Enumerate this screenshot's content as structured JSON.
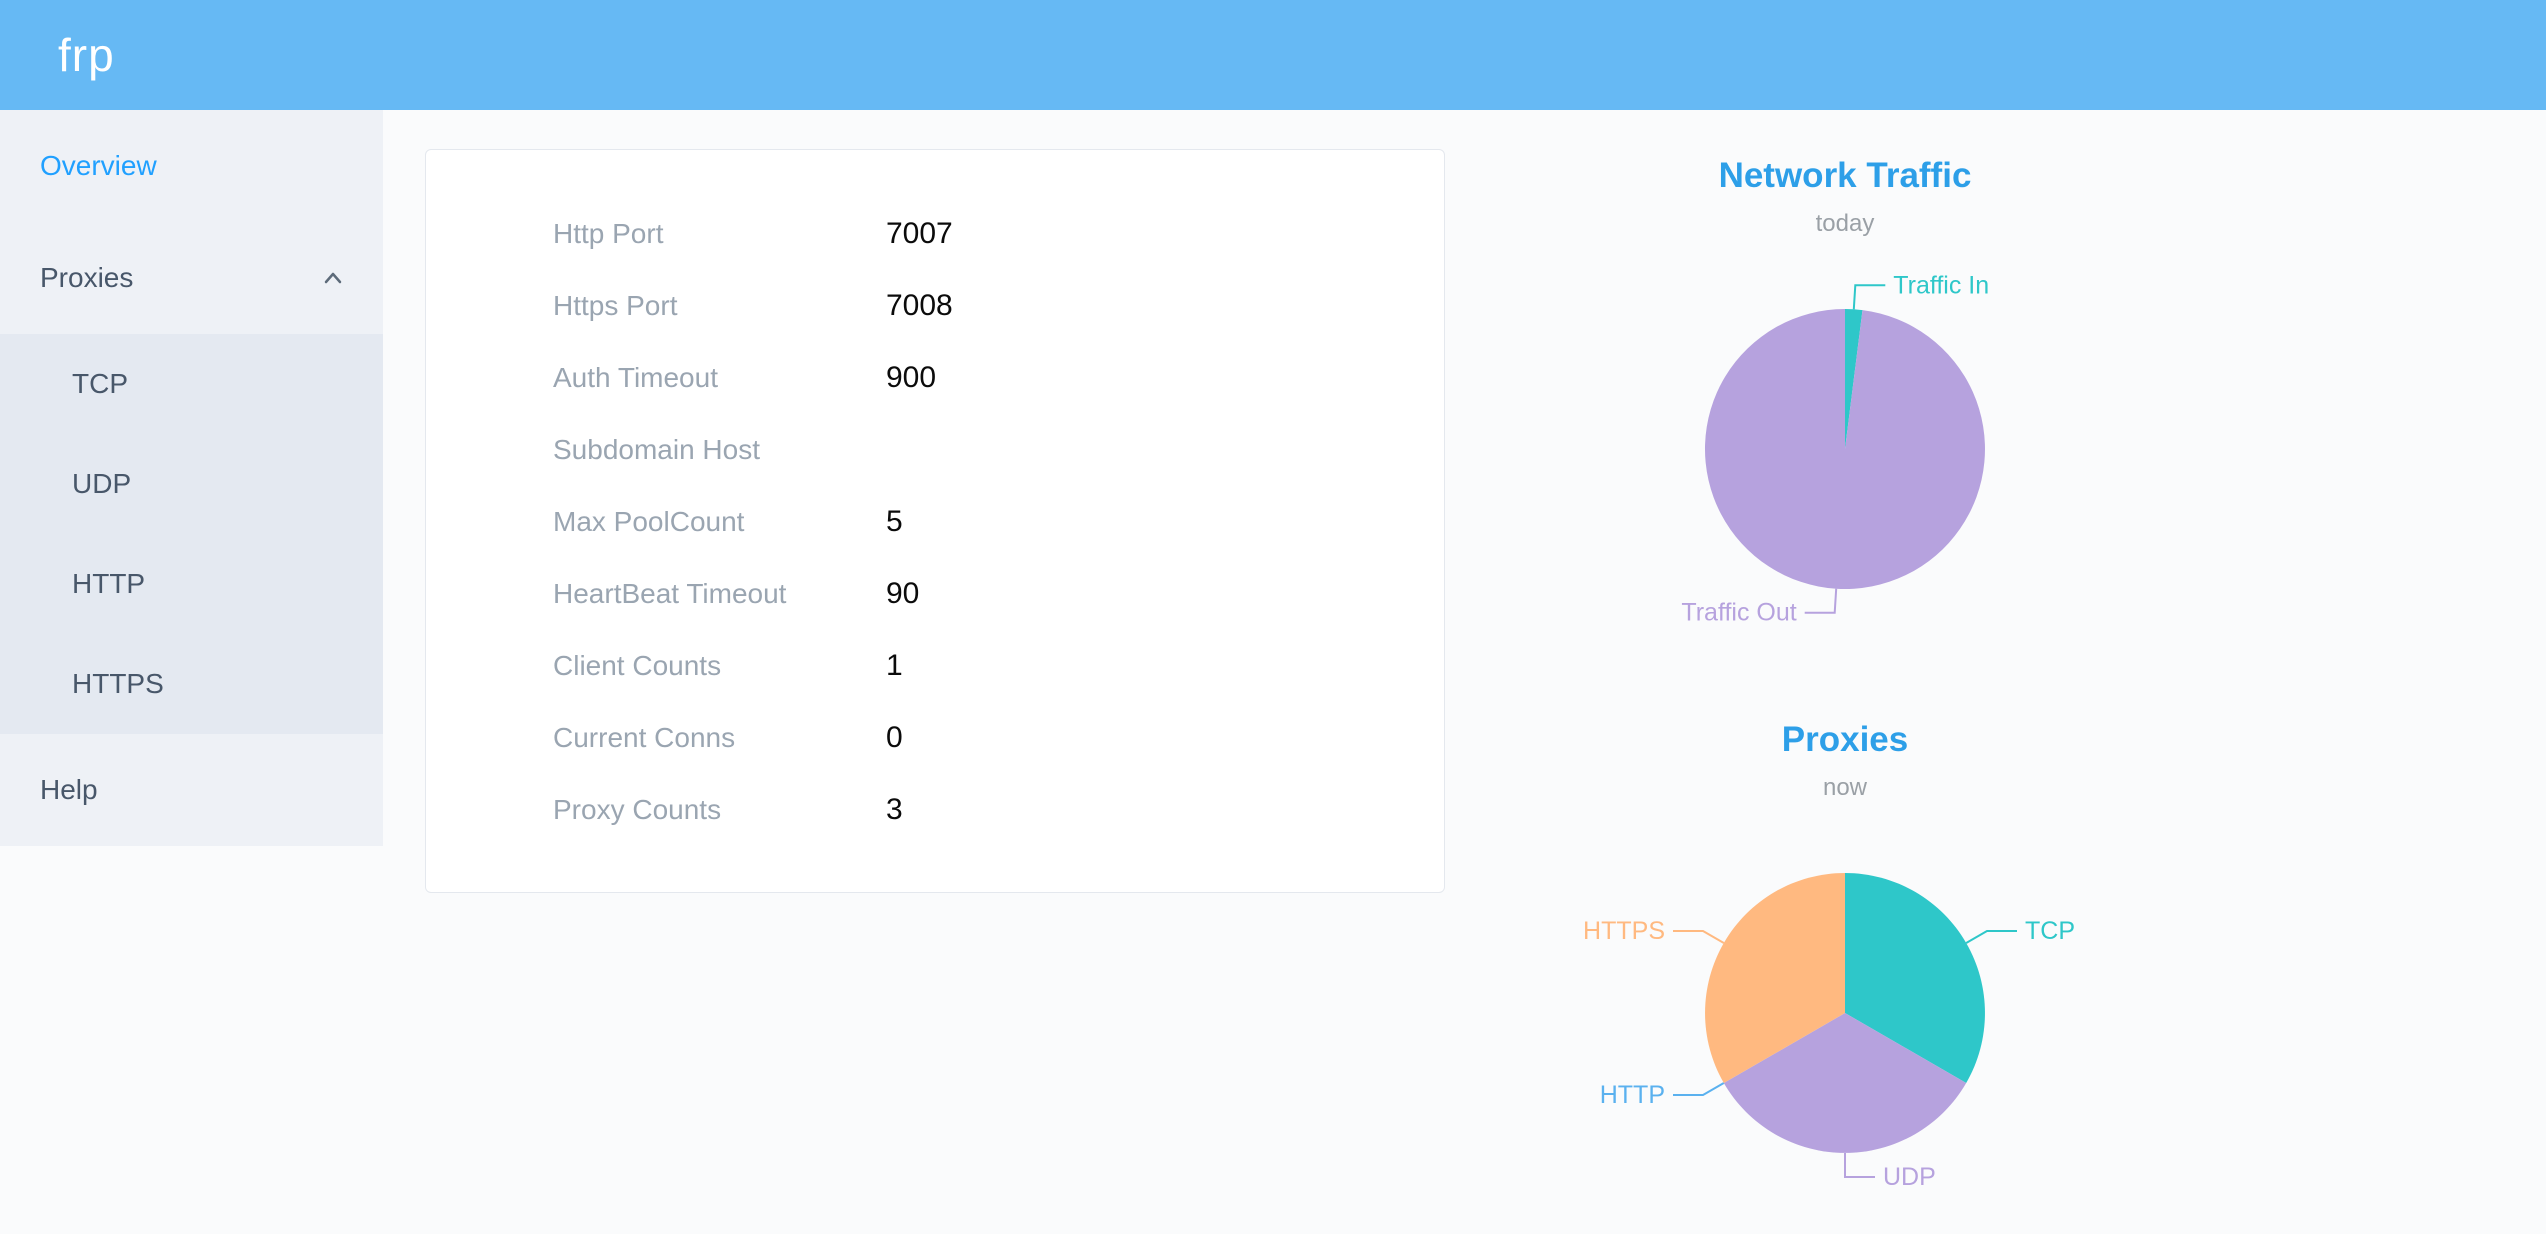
{
  "header": {
    "logo": "frp"
  },
  "sidebar": {
    "items": [
      {
        "label": "Overview",
        "active": true
      },
      {
        "label": "Proxies",
        "expanded": true,
        "children": [
          {
            "label": "TCP"
          },
          {
            "label": "UDP"
          },
          {
            "label": "HTTP"
          },
          {
            "label": "HTTPS"
          }
        ]
      },
      {
        "label": "Help"
      }
    ]
  },
  "server_info": {
    "rows": [
      {
        "label": "Http Port",
        "value": "7007"
      },
      {
        "label": "Https Port",
        "value": "7008"
      },
      {
        "label": "Auth Timeout",
        "value": "900"
      },
      {
        "label": "Subdomain Host",
        "value": ""
      },
      {
        "label": "Max PoolCount",
        "value": "5"
      },
      {
        "label": "HeartBeat Timeout",
        "value": "90"
      },
      {
        "label": "Client Counts",
        "value": "1"
      },
      {
        "label": "Current Conns",
        "value": "0"
      },
      {
        "label": "Proxy Counts",
        "value": "3"
      }
    ]
  },
  "chart_data": [
    {
      "type": "pie",
      "title": "Network Traffic",
      "subtitle": "today",
      "legend_position": "none",
      "series": [
        {
          "name": "Traffic In",
          "value": 2,
          "color": "#2ec7c9"
        },
        {
          "name": "Traffic Out",
          "value": 98,
          "color": "#b6a2de"
        }
      ]
    },
    {
      "type": "pie",
      "title": "Proxies",
      "subtitle": "now",
      "legend_position": "none",
      "series": [
        {
          "name": "TCP",
          "value": 1,
          "color": "#2ec7c9"
        },
        {
          "name": "UDP",
          "value": 1,
          "color": "#b6a2de"
        },
        {
          "name": "HTTP",
          "value": 0,
          "color": "#5ab1ef"
        },
        {
          "name": "HTTPS",
          "value": 1,
          "color": "#ffb980"
        }
      ]
    }
  ],
  "colors": {
    "header_bg": "#66b9f4",
    "active_menu": "#20a0ff",
    "chart_title": "#2d9fe8",
    "teal": "#2ec7c9",
    "purple": "#b6a2de",
    "blue": "#5ab1ef",
    "orange": "#ffb980"
  }
}
